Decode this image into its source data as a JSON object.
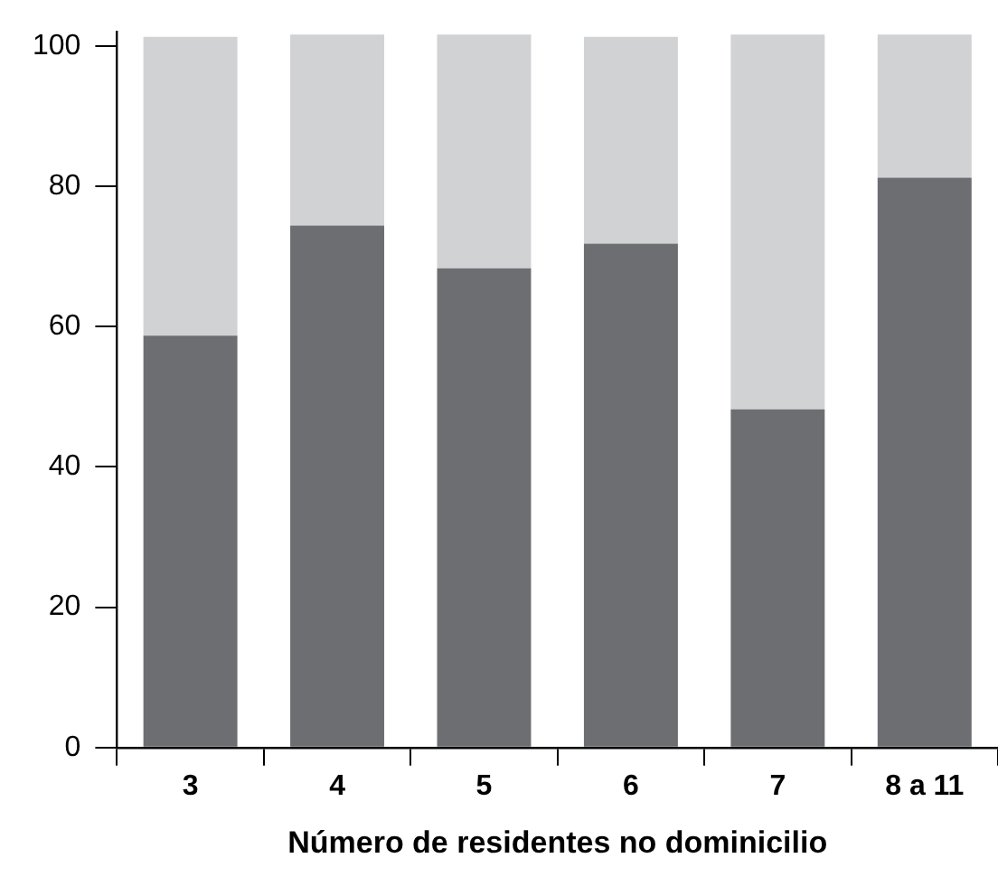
{
  "chart_data": {
    "type": "bar",
    "stacked": true,
    "xlabel": "Número de residentes no dominicilio",
    "categories": [
      "3",
      "4",
      "5",
      "6",
      "7",
      "8 a 11"
    ],
    "series": [
      {
        "color": "#6d6e72",
        "values": [
          58.7,
          74.4,
          68.3,
          71.8,
          48.2,
          81.2
        ]
      },
      {
        "color": "#d1d2d4",
        "values": [
          42.6,
          27.2,
          33.3,
          29.5,
          53.4,
          20.4
        ]
      }
    ],
    "ylim": [
      0,
      102
    ],
    "yticks": [
      0,
      20,
      40,
      60,
      80,
      100
    ],
    "grid": false,
    "legend": false
  }
}
